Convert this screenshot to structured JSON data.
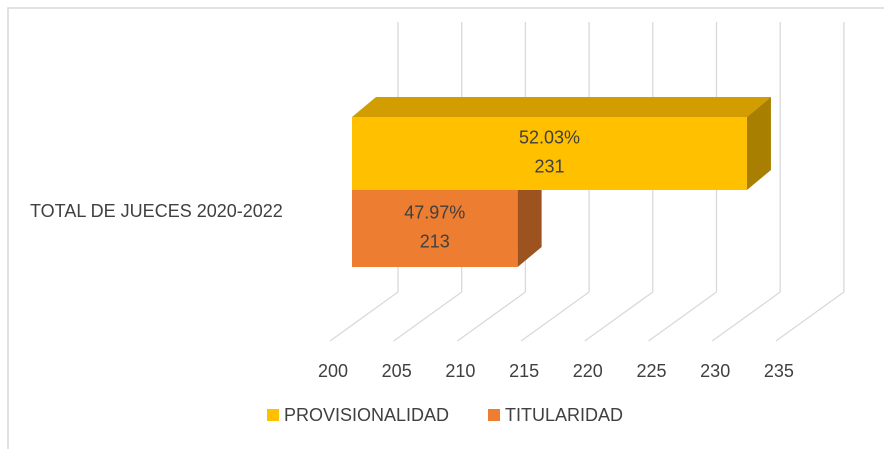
{
  "chart_data": {
    "type": "bar3d_horizontal",
    "categories": [
      "TOTAL DE JUECES 2020-2022"
    ],
    "series": [
      {
        "name": "PROVISIONALIDAD",
        "color": "#FFC000",
        "values": [
          231
        ],
        "percent_labels": [
          "52.03%"
        ]
      },
      {
        "name": "TITULARIDAD",
        "color": "#ED7D31",
        "values": [
          213
        ],
        "percent_labels": [
          "47.97%"
        ]
      }
    ],
    "xlim": [
      200,
      235
    ],
    "xticks": [
      200,
      205,
      210,
      215,
      220,
      225,
      230,
      235
    ],
    "grid": true,
    "legend": "bottom"
  }
}
